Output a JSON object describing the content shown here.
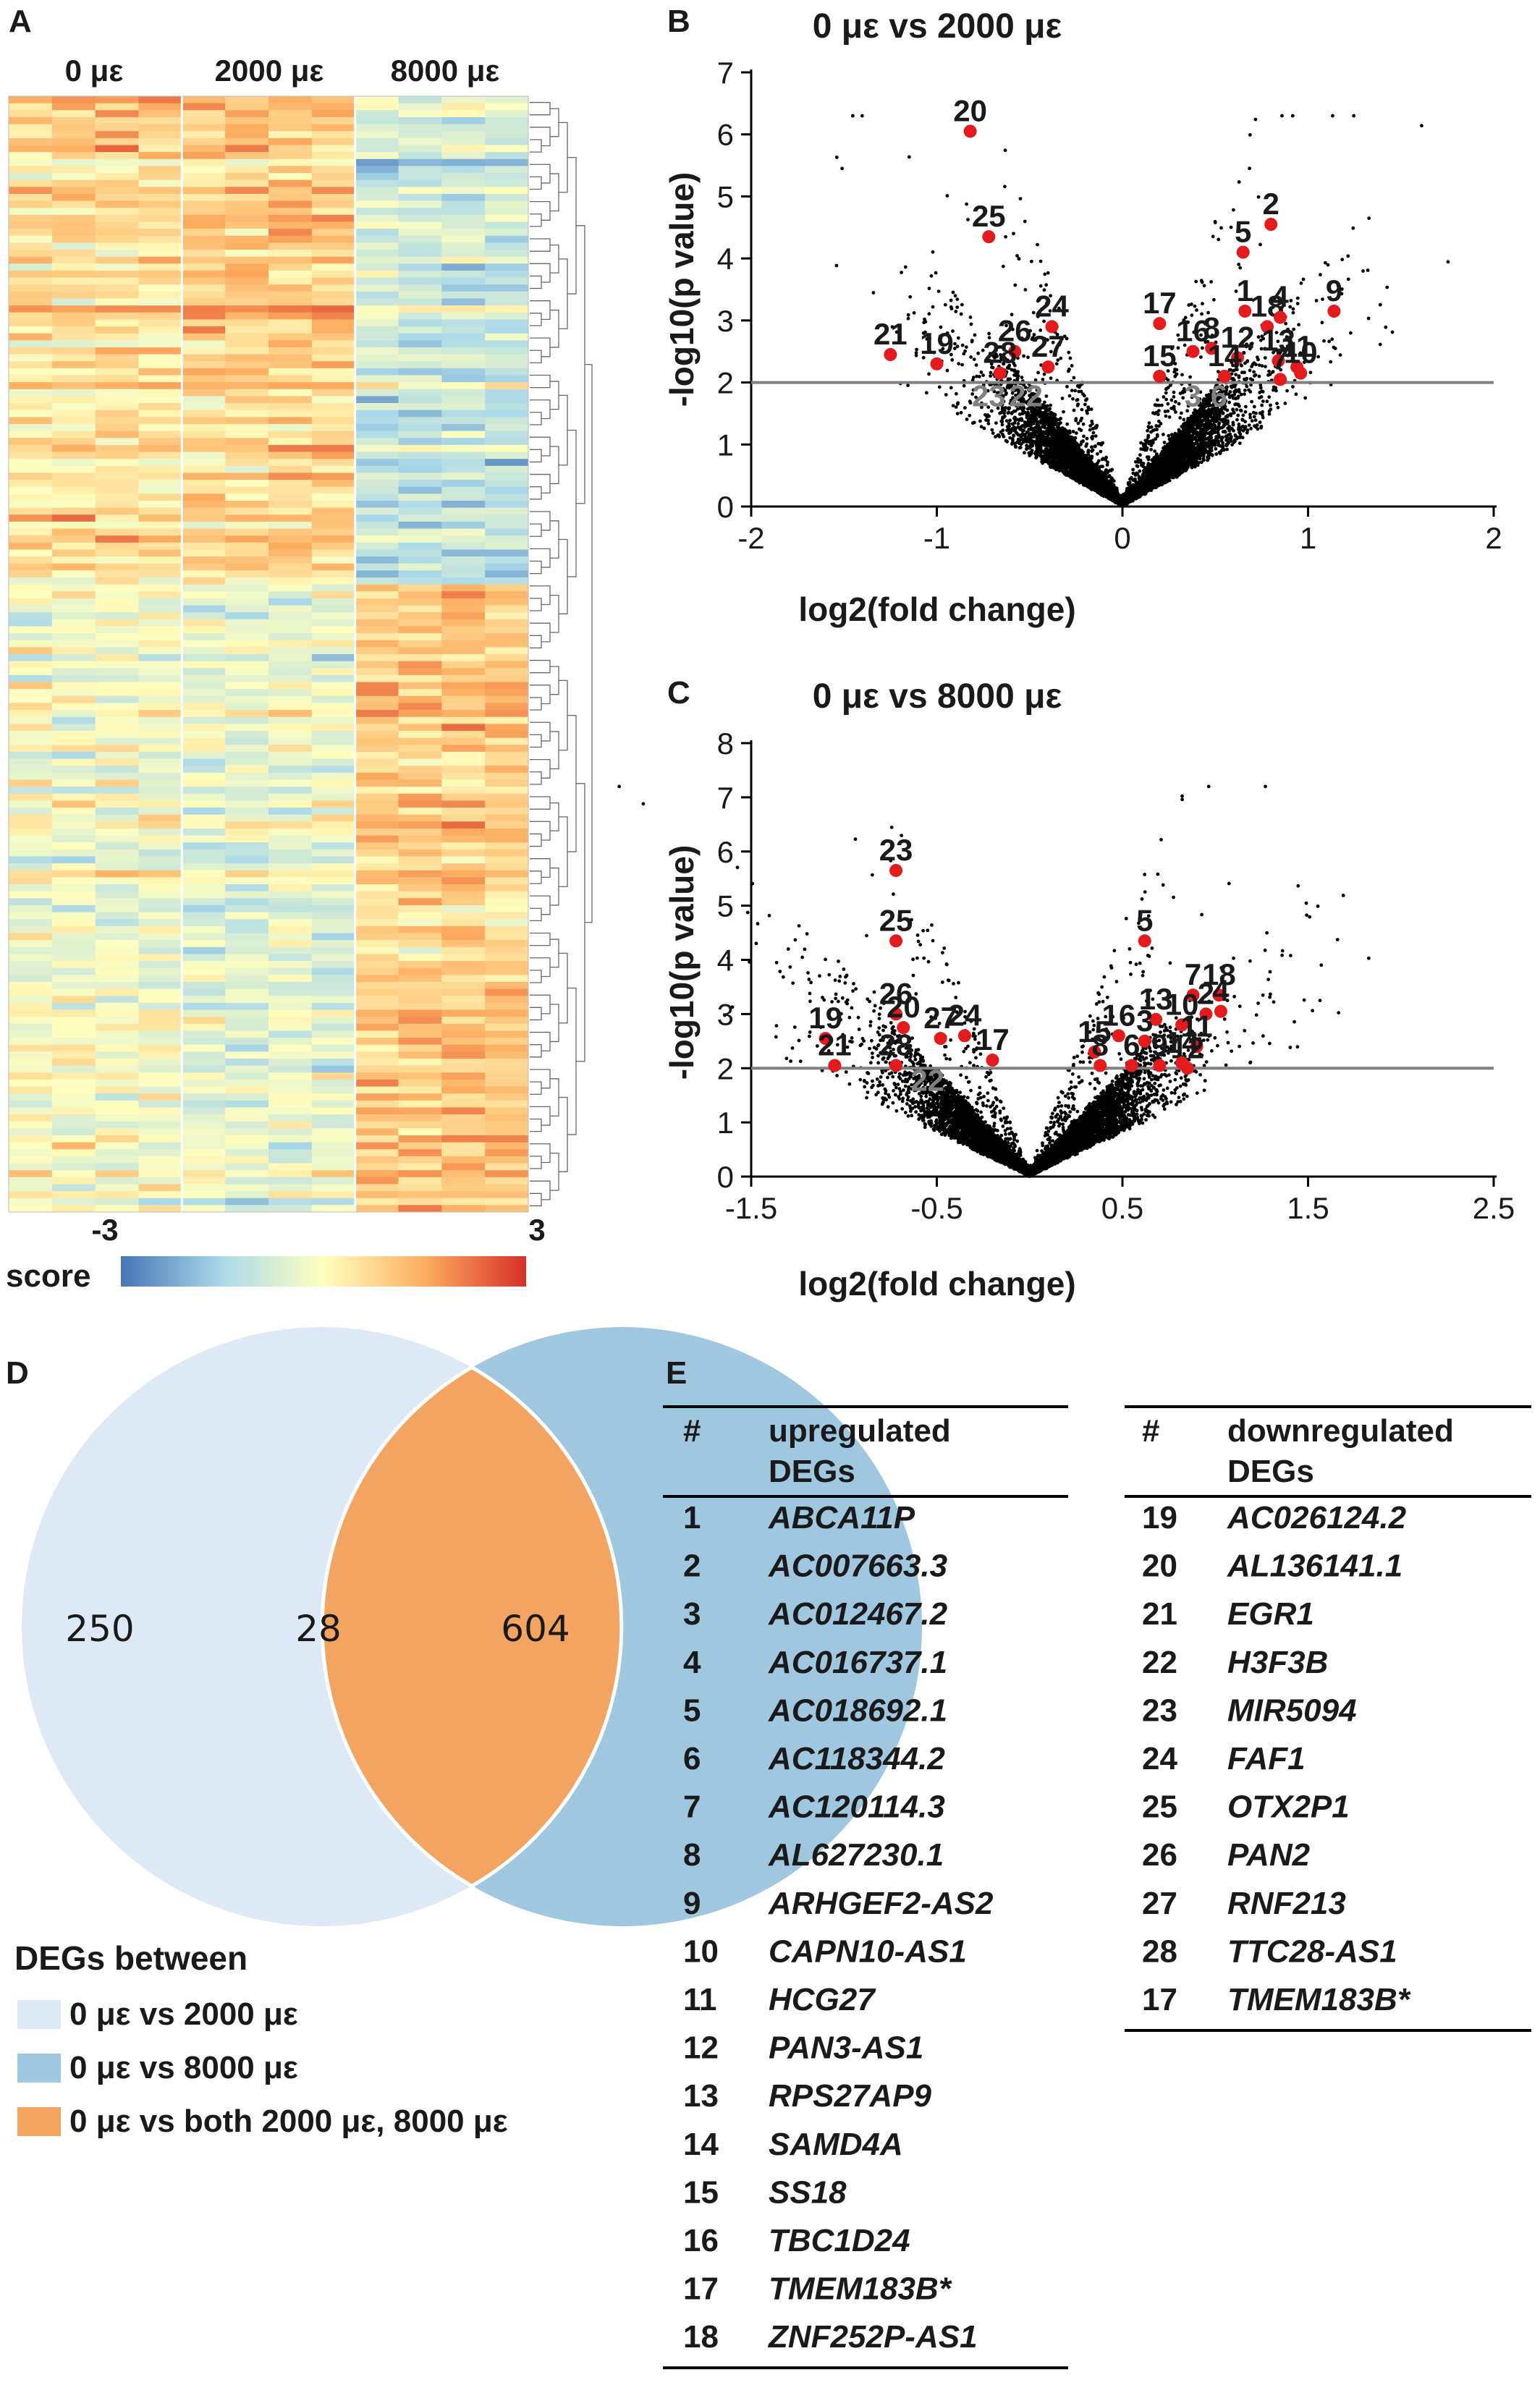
{
  "panels": {
    "A": "A",
    "B": "B",
    "C": "C",
    "D": "D",
    "E": "E"
  },
  "colors": {
    "heat_low": "#4575b4",
    "heat_mid": "#ffffbf",
    "heat_high": "#d73027",
    "highlight_point": "#e41a1c",
    "background_point": "#000000",
    "threshold_line": "#808080",
    "venn_a": "#dde9f4",
    "venn_b": "#9fc7e0",
    "venn_overlap": "#f2a460"
  },
  "heatmap": {
    "group_labels": [
      "0 με",
      "2000 με",
      "8000 με"
    ],
    "scale_min": "-3",
    "scale_max": "3",
    "scale_label": "score"
  },
  "chart_data": [
    {
      "type": "scatter",
      "title": "0 με vs 2000  με",
      "xlabel": "log2(fold change)",
      "ylabel": "-log10(p value)",
      "xlim": [
        -2,
        2
      ],
      "ylim": [
        0,
        7
      ],
      "xticks": [
        "-2",
        "-1",
        "0",
        "1",
        "2"
      ],
      "yticks": [
        "0",
        "1",
        "2",
        "3",
        "4",
        "5",
        "6",
        "7"
      ],
      "threshold_y": 2,
      "highlighted": [
        {
          "label": "20",
          "x": -0.82,
          "y": 6.05
        },
        {
          "label": "25",
          "x": -0.72,
          "y": 4.35
        },
        {
          "label": "2",
          "x": 0.8,
          "y": 4.55
        },
        {
          "label": "5",
          "x": 0.65,
          "y": 4.1
        },
        {
          "label": "9",
          "x": 1.14,
          "y": 3.15
        },
        {
          "label": "17",
          "x": 0.2,
          "y": 2.95
        },
        {
          "label": "1",
          "x": 0.66,
          "y": 3.15
        },
        {
          "label": "18",
          "x": 0.78,
          "y": 2.9
        },
        {
          "label": "4",
          "x": 0.85,
          "y": 3.05
        },
        {
          "label": "24",
          "x": -0.38,
          "y": 2.9
        },
        {
          "label": "21",
          "x": -1.25,
          "y": 2.45
        },
        {
          "label": "19",
          "x": -1.0,
          "y": 2.3
        },
        {
          "label": "26",
          "x": -0.58,
          "y": 2.5
        },
        {
          "label": "8",
          "x": 0.48,
          "y": 2.55
        },
        {
          "label": "16",
          "x": 0.38,
          "y": 2.5
        },
        {
          "label": "12",
          "x": 0.62,
          "y": 2.4
        },
        {
          "label": "13",
          "x": 0.84,
          "y": 2.35
        },
        {
          "label": "11",
          "x": 0.94,
          "y": 2.25
        },
        {
          "label": "28",
          "x": -0.66,
          "y": 2.15
        },
        {
          "label": "27",
          "x": -0.4,
          "y": 2.25
        },
        {
          "label": "15",
          "x": 0.2,
          "y": 2.1
        },
        {
          "label": "14",
          "x": 0.55,
          "y": 2.1
        },
        {
          "label": "10",
          "x": 0.96,
          "y": 2.15
        },
        {
          "label": "7",
          "x": 0.85,
          "y": 2.05
        }
      ],
      "grey_labels": [
        {
          "label": "23",
          "x": -0.72,
          "y": 1.85
        },
        {
          "label": "22",
          "x": -0.52,
          "y": 1.85
        },
        {
          "label": "3",
          "x": 0.38,
          "y": 1.85
        },
        {
          "label": "6",
          "x": 0.52,
          "y": 1.85
        }
      ],
      "background": {
        "n": 9000,
        "x_sd": 0.28,
        "xmax_abs": 1.8,
        "seed": 11
      }
    },
    {
      "type": "scatter",
      "title": "0 με vs 8000  με",
      "xlabel": "log2(fold change)",
      "ylabel": "-log10(p value)",
      "xlim": [
        -1.5,
        2.5
      ],
      "ylim": [
        0,
        8
      ],
      "xticks": [
        "-1.5",
        "-0.5",
        "0.5",
        "1.5",
        "2.5"
      ],
      "yticks": [
        "0",
        "1",
        "2",
        "3",
        "4",
        "5",
        "6",
        "7",
        "8"
      ],
      "threshold_y": 2,
      "highlighted": [
        {
          "label": "23",
          "x": -0.72,
          "y": 5.65
        },
        {
          "label": "25",
          "x": -0.72,
          "y": 4.35
        },
        {
          "label": "5",
          "x": 0.62,
          "y": 4.35
        },
        {
          "label": "7",
          "x": 0.88,
          "y": 3.35
        },
        {
          "label": "18",
          "x": 1.02,
          "y": 3.35
        },
        {
          "label": "26",
          "x": -0.72,
          "y": 3.0
        },
        {
          "label": "2",
          "x": 0.95,
          "y": 3.0
        },
        {
          "label": "4",
          "x": 1.03,
          "y": 3.05
        },
        {
          "label": "13",
          "x": 0.68,
          "y": 2.9
        },
        {
          "label": "10",
          "x": 0.82,
          "y": 2.8
        },
        {
          "label": "27",
          "x": -0.48,
          "y": 2.55
        },
        {
          "label": "24",
          "x": -0.35,
          "y": 2.6
        },
        {
          "label": "19",
          "x": -1.1,
          "y": 2.55
        },
        {
          "label": "20",
          "x": -0.68,
          "y": 2.75
        },
        {
          "label": "16",
          "x": 0.48,
          "y": 2.6
        },
        {
          "label": "3",
          "x": 0.62,
          "y": 2.5
        },
        {
          "label": "11",
          "x": 0.9,
          "y": 2.4
        },
        {
          "label": "15",
          "x": 0.35,
          "y": 2.3
        },
        {
          "label": "17",
          "x": -0.2,
          "y": 2.15
        },
        {
          "label": "21",
          "x": -1.05,
          "y": 2.05
        },
        {
          "label": "28",
          "x": -0.72,
          "y": 2.05
        },
        {
          "label": "8",
          "x": 0.38,
          "y": 2.05
        },
        {
          "label": "6",
          "x": 0.55,
          "y": 2.05
        },
        {
          "label": "9",
          "x": 0.7,
          "y": 2.05
        },
        {
          "label": "12",
          "x": 0.85,
          "y": 2.0
        },
        {
          "label": "14",
          "x": 0.82,
          "y": 2.1
        }
      ],
      "grey_labels": [
        {
          "label": "22",
          "x": -0.55,
          "y": 1.85
        }
      ],
      "background": {
        "n": 9000,
        "x_sd": 0.3,
        "xmax_abs": 2.3,
        "seed": 29
      }
    }
  ],
  "venn": {
    "only_a": "250",
    "overlap": "28",
    "only_b": "604",
    "legend_title": "DEGs between",
    "legend_items": [
      {
        "label": "0 με vs 2000 με",
        "color": "#dde9f4"
      },
      {
        "label": "0 με vs 8000 με",
        "color": "#9fc7e0"
      },
      {
        "label": "0 με vs both 2000 με, 8000 με",
        "color": "#f2a460"
      }
    ]
  },
  "tables": {
    "up": {
      "header_num": "#",
      "header_label_1": "upregulated",
      "header_label_2": "DEGs",
      "rows": [
        {
          "num": "1",
          "gene": "ABCA11P"
        },
        {
          "num": "2",
          "gene": "AC007663.3"
        },
        {
          "num": "3",
          "gene": "AC012467.2"
        },
        {
          "num": "4",
          "gene": "AC016737.1"
        },
        {
          "num": "5",
          "gene": "AC018692.1"
        },
        {
          "num": "6",
          "gene": "AC118344.2"
        },
        {
          "num": "7",
          "gene": "AC120114.3"
        },
        {
          "num": "8",
          "gene": "AL627230.1"
        },
        {
          "num": "9",
          "gene": "ARHGEF2-AS2"
        },
        {
          "num": "10",
          "gene": "CAPN10-AS1"
        },
        {
          "num": "11",
          "gene": "HCG27"
        },
        {
          "num": "12",
          "gene": "PAN3-AS1"
        },
        {
          "num": "13",
          "gene": "RPS27AP9"
        },
        {
          "num": "14",
          "gene": "SAMD4A"
        },
        {
          "num": "15",
          "gene": "SS18"
        },
        {
          "num": "16",
          "gene": "TBC1D24"
        },
        {
          "num": "17",
          "gene": "TMEM183B*"
        },
        {
          "num": "18",
          "gene": "ZNF252P-AS1"
        }
      ]
    },
    "down": {
      "header_num": "#",
      "header_label_1": "downregulated",
      "header_label_2": "DEGs",
      "rows": [
        {
          "num": "19",
          "gene": "AC026124.2"
        },
        {
          "num": "20",
          "gene": "AL136141.1"
        },
        {
          "num": "21",
          "gene": "EGR1"
        },
        {
          "num": "22",
          "gene": "H3F3B"
        },
        {
          "num": "23",
          "gene": "MIR5094"
        },
        {
          "num": "24",
          "gene": "FAF1"
        },
        {
          "num": "25",
          "gene": "OTX2P1"
        },
        {
          "num": "26",
          "gene": "PAN2"
        },
        {
          "num": "27",
          "gene": "RNF213"
        },
        {
          "num": "28",
          "gene": "TTC28-AS1"
        },
        {
          "num": "17",
          "gene": "TMEM183B*"
        }
      ]
    }
  }
}
